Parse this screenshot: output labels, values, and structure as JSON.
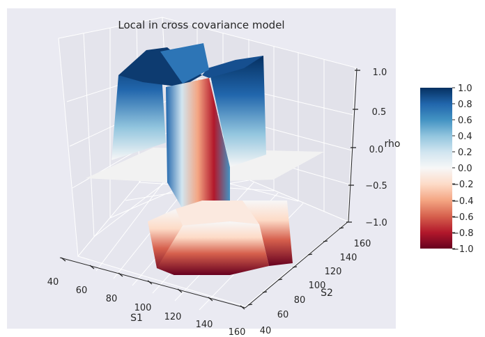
{
  "chart_data": {
    "type": "surface3d",
    "title": "Local in cross covariance model",
    "xlabel": "S1",
    "ylabel": "S2",
    "zlabel": "rho",
    "xlim": [
      40,
      160
    ],
    "ylim": [
      40,
      160
    ],
    "zlim": [
      -1.0,
      1.0
    ],
    "x_ticks": [
      "40",
      "60",
      "80",
      "100",
      "120",
      "140",
      "160"
    ],
    "y_ticks": [
      "40",
      "60",
      "80",
      "100",
      "120",
      "140",
      "160"
    ],
    "z_ticks": [
      "−1.0",
      "−0.5",
      "0.0",
      "0.5",
      "1.0"
    ],
    "colorbar": {
      "colormap": "RdBu",
      "range": [
        -1.0,
        1.0
      ],
      "ticks": [
        "1.0",
        "0.8",
        "0.6",
        "0.4",
        "0.2",
        "0.0",
        "−0.2",
        "−0.4",
        "−0.6",
        "−0.8",
        "−1.0"
      ]
    },
    "grid": true,
    "pane_color": "#eaeaf2",
    "surface_regions": [
      {
        "region": "S1 < 100, S2 < 100",
        "rho": 1.0
      },
      {
        "region": "S1 > 100, S2 > 100",
        "rho": 1.0
      },
      {
        "region": "S1 < 100, S2 > 100",
        "rho": -1.0
      },
      {
        "region": "S1 > 100, S2 < 100",
        "rho": -1.0
      },
      {
        "region": "outer border",
        "rho": 0.0
      }
    ]
  }
}
